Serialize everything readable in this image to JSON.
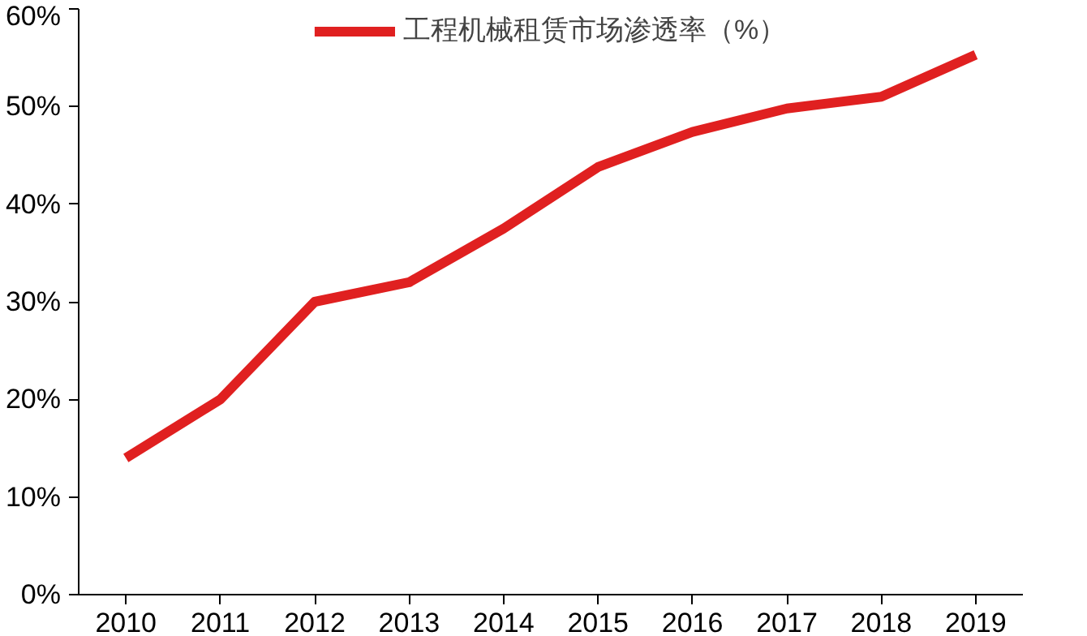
{
  "chart_data": {
    "type": "line",
    "categories": [
      "2010",
      "2011",
      "2012",
      "2013",
      "2014",
      "2015",
      "2016",
      "2017",
      "2018",
      "2019"
    ],
    "series": [
      {
        "name": "工程机械租赁市场渗透率（%）",
        "color": "#e02020",
        "values": [
          14,
          20,
          30,
          32,
          37.5,
          43.8,
          47.4,
          49.8,
          51,
          55.3
        ]
      }
    ],
    "ylim": [
      0,
      60
    ],
    "yticks": [
      {
        "value": 0,
        "label": "0%"
      },
      {
        "value": 10,
        "label": "10%"
      },
      {
        "value": 20,
        "label": "20%"
      },
      {
        "value": 30,
        "label": "30%"
      },
      {
        "value": 40,
        "label": "40%"
      },
      {
        "value": 50,
        "label": "50%"
      },
      {
        "value": 60,
        "label": "60%"
      }
    ],
    "grid": false,
    "legend": "top",
    "marker": "none",
    "line_style": "solid"
  }
}
